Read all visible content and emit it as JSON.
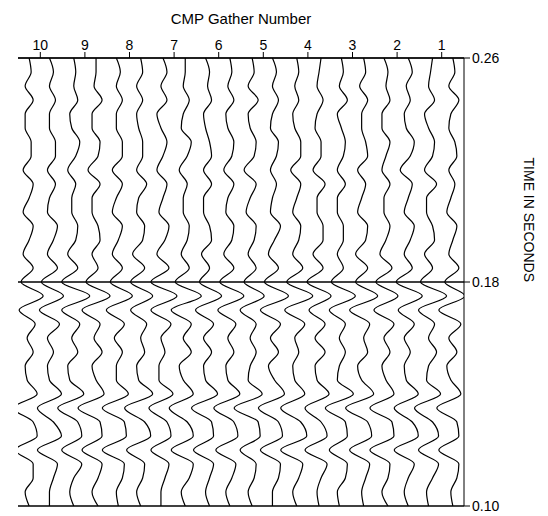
{
  "chart_data": {
    "type": "wiggle",
    "x_label": "CMP Gather Number",
    "y_label": "TIME IN SECONDS",
    "xlim": [
      0.5,
      10.5
    ],
    "xticks": [
      1,
      2,
      3,
      4,
      5,
      6,
      7,
      8,
      9,
      10
    ],
    "ylim": [
      0.1,
      0.26
    ],
    "yticks": [
      {
        "value": 0.1,
        "label": "0.10"
      },
      0.18,
      0.26
    ],
    "grid": true,
    "color": "#000000",
    "time": [
      0.1,
      0.105,
      0.11,
      0.115,
      0.12,
      0.125,
      0.13,
      0.135,
      0.14,
      0.145,
      0.15,
      0.155,
      0.16,
      0.165,
      0.17,
      0.175,
      0.18,
      0.185,
      0.19,
      0.195,
      0.2,
      0.205,
      0.21,
      0.215,
      0.22,
      0.225,
      0.23,
      0.235,
      0.24,
      0.245,
      0.25,
      0.255,
      0.26
    ],
    "traces": [
      {
        "position": 0.75,
        "values": [
          0,
          1,
          -2,
          -3,
          7,
          -3,
          -2,
          8,
          -4,
          1,
          3,
          -2,
          2,
          -4,
          7,
          -6,
          4,
          -3,
          2,
          0,
          -2,
          3,
          1,
          -1,
          2,
          -2,
          -1,
          2,
          1,
          -3,
          2,
          -1,
          0
        ]
      },
      {
        "position": 1.25,
        "values": [
          1,
          2,
          -1,
          -4,
          6,
          -4,
          -1,
          8,
          -5,
          2,
          1,
          -3,
          1,
          -2,
          6,
          -8,
          5,
          -1,
          3,
          -2,
          -1,
          2,
          2,
          -3,
          3,
          -1,
          -2,
          1,
          3,
          -2,
          1,
          0,
          -1
        ]
      },
      {
        "position": 1.75,
        "values": [
          0,
          2,
          0,
          -3,
          7,
          -5,
          -2,
          7,
          -5,
          1,
          2,
          -1,
          2,
          -3,
          5,
          -7,
          6,
          -2,
          2,
          -1,
          -3,
          2,
          0,
          -2,
          4,
          -1,
          -3,
          1,
          2,
          -1,
          1,
          -2,
          0
        ]
      },
      {
        "position": 2.25,
        "values": [
          -1,
          2,
          -1,
          -2,
          8,
          -4,
          -3,
          8,
          -4,
          0,
          2,
          -2,
          1,
          -4,
          6,
          -6,
          5,
          -3,
          3,
          0,
          -2,
          1,
          1,
          -2,
          2,
          0,
          -2,
          2,
          2,
          -2,
          0,
          -1,
          1
        ]
      },
      {
        "position": 2.75,
        "values": [
          0,
          1,
          -1,
          -3,
          7,
          -4,
          -2,
          9,
          -5,
          1,
          3,
          -2,
          0,
          -3,
          7,
          -7,
          4,
          -2,
          4,
          -1,
          -2,
          3,
          1,
          -1,
          3,
          -2,
          -1,
          1,
          1,
          -2,
          2,
          -1,
          0
        ]
      },
      {
        "position": 3.25,
        "values": [
          1,
          2,
          -2,
          -3,
          6,
          -3,
          -2,
          8,
          -6,
          2,
          1,
          -2,
          1,
          -2,
          6,
          -7,
          5,
          -1,
          2,
          -1,
          -1,
          2,
          2,
          -2,
          2,
          -1,
          -2,
          0,
          2,
          -3,
          1,
          -1,
          0
        ]
      },
      {
        "position": 3.75,
        "values": [
          0,
          1,
          -1,
          -4,
          7,
          -4,
          -1,
          7,
          -5,
          1,
          2,
          -3,
          2,
          -3,
          5,
          -6,
          6,
          -2,
          3,
          -2,
          -2,
          1,
          1,
          -3,
          3,
          -1,
          -1,
          2,
          1,
          -2,
          1,
          0,
          -1
        ]
      },
      {
        "position": 4.25,
        "values": [
          0,
          2,
          -1,
          -3,
          8,
          -5,
          -2,
          8,
          -4,
          1,
          2,
          -1,
          1,
          -4,
          6,
          -8,
          5,
          -3,
          2,
          -1,
          -2,
          2,
          0,
          -2,
          3,
          -2,
          -2,
          1,
          2,
          -1,
          1,
          -1,
          0
        ]
      },
      {
        "position": 4.75,
        "values": [
          1,
          1,
          -2,
          -3,
          7,
          -4,
          -2,
          8,
          -5,
          0,
          3,
          -2,
          2,
          -3,
          7,
          -7,
          5,
          -2,
          3,
          0,
          -3,
          2,
          1,
          -1,
          2,
          -1,
          -2,
          2,
          1,
          -2,
          1,
          -1,
          1
        ]
      },
      {
        "position": 5.25,
        "values": [
          0,
          2,
          -1,
          -2,
          6,
          -4,
          -3,
          9,
          -5,
          2,
          1,
          -2,
          1,
          -2,
          6,
          -6,
          4,
          -2,
          2,
          -1,
          -2,
          3,
          1,
          -2,
          4,
          -1,
          -2,
          1,
          2,
          -3,
          2,
          -1,
          0
        ]
      },
      {
        "position": 5.75,
        "values": [
          0,
          2,
          -1,
          -3,
          7,
          -4,
          -2,
          8,
          -5,
          1,
          2,
          -2,
          1,
          -3,
          6,
          -7,
          5,
          -2,
          3,
          -1,
          -2,
          2,
          1,
          -2,
          3,
          -1,
          -2,
          1,
          2,
          -2,
          1,
          -1,
          0
        ]
      },
      {
        "position": 6.25,
        "values": [
          -1,
          1,
          -1,
          -3,
          7,
          -3,
          -2,
          8,
          -5,
          1,
          2,
          -2,
          2,
          -3,
          6,
          -7,
          4,
          -1,
          3,
          -2,
          -1,
          2,
          2,
          -2,
          2,
          -2,
          -1,
          1,
          2,
          -2,
          0,
          -1,
          1
        ]
      },
      {
        "position": 6.75,
        "values": [
          0,
          2,
          -2,
          -4,
          7,
          -4,
          -1,
          8,
          -4,
          1,
          3,
          -3,
          1,
          -3,
          7,
          -8,
          5,
          -2,
          2,
          -1,
          -2,
          1,
          1,
          -1,
          3,
          -1,
          -3,
          2,
          1,
          -2,
          1,
          0,
          0
        ]
      },
      {
        "position": 7.25,
        "values": [
          1,
          1,
          -1,
          -3,
          6,
          -4,
          -2,
          7,
          -5,
          2,
          2,
          -1,
          1,
          -4,
          6,
          -7,
          6,
          -3,
          3,
          -1,
          -3,
          2,
          0,
          -2,
          3,
          0,
          -2,
          1,
          3,
          -2,
          1,
          -2,
          0
        ]
      },
      {
        "position": 7.75,
        "values": [
          0,
          2,
          -1,
          -2,
          7,
          -5,
          -2,
          8,
          -6,
          1,
          2,
          -2,
          0,
          -3,
          5,
          -6,
          5,
          -2,
          4,
          -1,
          -2,
          2,
          1,
          -3,
          2,
          -1,
          -1,
          1,
          2,
          -1,
          2,
          -1,
          0
        ]
      },
      {
        "position": 8.25,
        "values": [
          0,
          1,
          -2,
          -3,
          8,
          -4,
          -3,
          8,
          -5,
          1,
          1,
          -2,
          2,
          -3,
          6,
          -7,
          4,
          -2,
          3,
          0,
          -2,
          3,
          1,
          -2,
          3,
          -2,
          -2,
          1,
          1,
          -2,
          1,
          -1,
          1
        ]
      },
      {
        "position": 8.75,
        "values": [
          -1,
          2,
          -1,
          -3,
          7,
          -3,
          -2,
          9,
          -4,
          0,
          2,
          -3,
          1,
          -2,
          7,
          -7,
          5,
          -1,
          2,
          -2,
          -1,
          2,
          2,
          -2,
          4,
          -1,
          -2,
          2,
          2,
          -3,
          1,
          0,
          0
        ]
      },
      {
        "position": 9.25,
        "values": [
          0,
          2,
          0,
          -4,
          6,
          -4,
          -2,
          8,
          -5,
          2,
          3,
          -2,
          1,
          -3,
          6,
          -8,
          6,
          -2,
          3,
          -1,
          -2,
          1,
          1,
          -1,
          3,
          -1,
          -3,
          1,
          2,
          -2,
          0,
          -1,
          0
        ]
      },
      {
        "position": 9.75,
        "values": [
          1,
          1,
          -1,
          -3,
          7,
          -5,
          -1,
          7,
          -5,
          1,
          2,
          -1,
          2,
          -4,
          6,
          -6,
          5,
          -3,
          2,
          -1,
          -3,
          2,
          1,
          -2,
          2,
          -2,
          -2,
          1,
          1,
          -2,
          1,
          -1,
          1
        ]
      },
      {
        "position": 10.25,
        "values": [
          0,
          2,
          -2,
          -2,
          7,
          -4,
          -2,
          8,
          -4,
          1,
          2,
          -2,
          1,
          -3,
          5,
          -7,
          4,
          -2,
          3,
          0,
          -2,
          3,
          0,
          -2,
          3,
          -1,
          -1,
          2,
          2,
          -2,
          2,
          -1,
          0
        ]
      }
    ]
  }
}
